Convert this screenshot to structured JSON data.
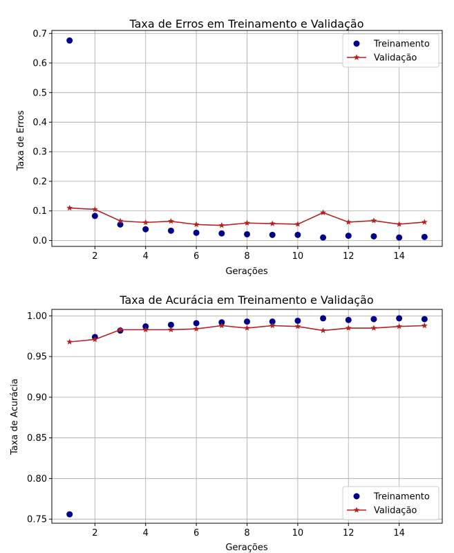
{
  "chart_data": [
    {
      "type": "line",
      "title": "Taxa de Erros em Treinamento e Validação",
      "xlabel": "Gerações",
      "ylabel": "Taxa de Erros",
      "xlim": [
        0.3,
        15.7
      ],
      "ylim": [
        -0.02,
        0.71
      ],
      "xticks": [
        2,
        4,
        6,
        8,
        10,
        12,
        14
      ],
      "yticks": [
        0.0,
        0.1,
        0.2,
        0.3,
        0.4,
        0.5,
        0.6,
        0.7
      ],
      "ytick_decimals": 1,
      "grid": true,
      "legend_position": "top-right",
      "x": [
        1,
        2,
        3,
        4,
        5,
        6,
        7,
        8,
        9,
        10,
        11,
        12,
        13,
        14,
        15
      ],
      "series": [
        {
          "name": "Treinamento",
          "style": "markers",
          "marker": "circle",
          "color": "#00008b",
          "values": [
            0.676,
            0.083,
            0.054,
            0.038,
            0.033,
            0.026,
            0.024,
            0.021,
            0.019,
            0.019,
            0.01,
            0.016,
            0.014,
            0.01,
            0.012
          ]
        },
        {
          "name": "Validação",
          "style": "line",
          "marker": "star",
          "color": "#b22222",
          "values": [
            0.11,
            0.105,
            0.066,
            0.061,
            0.065,
            0.054,
            0.051,
            0.059,
            0.057,
            0.055,
            0.094,
            0.062,
            0.067,
            0.055,
            0.062
          ]
        }
      ]
    },
    {
      "type": "line",
      "title": "Taxa de Acurácia em Treinamento e Validação",
      "xlabel": "Gerações",
      "ylabel": "Taxa de Acurácia",
      "xlim": [
        0.3,
        15.7
      ],
      "ylim": [
        0.745,
        1.008
      ],
      "xticks": [
        2,
        4,
        6,
        8,
        10,
        12,
        14
      ],
      "yticks": [
        0.75,
        0.8,
        0.85,
        0.9,
        0.95,
        1.0
      ],
      "ytick_decimals": 2,
      "grid": true,
      "legend_position": "bottom-right",
      "x": [
        1,
        2,
        3,
        4,
        5,
        6,
        7,
        8,
        9,
        10,
        11,
        12,
        13,
        14,
        15
      ],
      "series": [
        {
          "name": "Treinamento",
          "style": "markers",
          "marker": "circle",
          "color": "#00008b",
          "values": [
            0.756,
            0.974,
            0.982,
            0.987,
            0.989,
            0.991,
            0.992,
            0.993,
            0.993,
            0.994,
            0.997,
            0.995,
            0.996,
            0.997,
            0.996
          ]
        },
        {
          "name": "Validação",
          "style": "line",
          "marker": "star",
          "color": "#b22222",
          "values": [
            0.968,
            0.971,
            0.983,
            0.983,
            0.983,
            0.984,
            0.988,
            0.985,
            0.988,
            0.987,
            0.982,
            0.985,
            0.985,
            0.987,
            0.988
          ]
        }
      ]
    }
  ]
}
